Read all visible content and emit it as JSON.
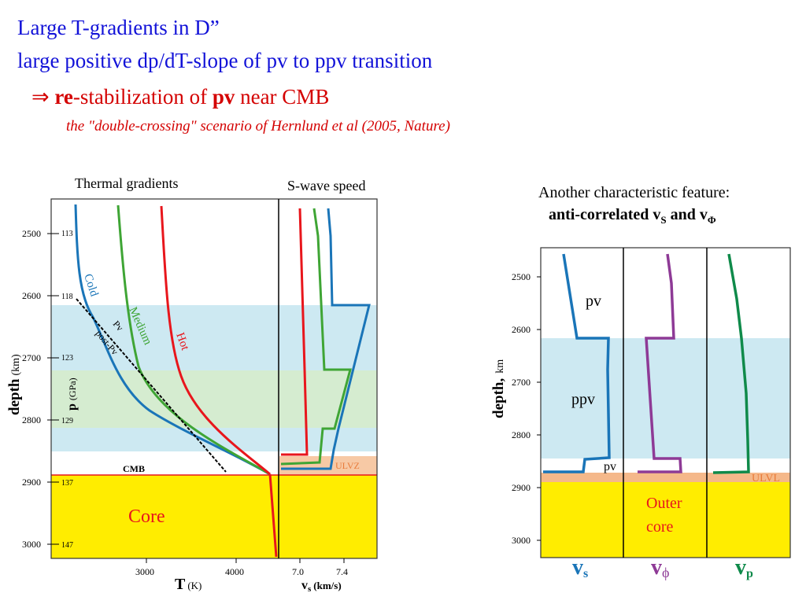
{
  "header": {
    "line1": "Large T-gradients in D”",
    "line2": "large positive dp/dT-slope of pv to ppv transition",
    "line3": {
      "arrow": "⇒",
      "re": "re",
      "mid": "-stabilization of ",
      "pv": "pv",
      "end": " near CMB"
    },
    "line4": "the \"double-crossing\" scenario of Hernlund et al (2005, Nature)"
  },
  "left_figure": {
    "caption_thermal": "Thermal gradients",
    "caption_swave": "S-wave speed",
    "depth_ticks": [
      "2500",
      "2600",
      "2700",
      "2800",
      "2900",
      "3000"
    ],
    "pressure_ticks": [
      "113",
      "118",
      "123",
      "129",
      "137",
      "147"
    ],
    "depth_label": "depth",
    "depth_unit": "(km)",
    "pressure_label": "p",
    "pressure_unit": "(GPa)",
    "t_ticks": [
      "3000",
      "4000"
    ],
    "t_label": "T",
    "t_unit": "(K)",
    "vs_ticks": [
      "7.0",
      "7.4"
    ],
    "vs_label": "v",
    "vs_sub": "s",
    "vs_unit": "(km/s)",
    "curve_labels": {
      "cold": "Cold",
      "medium": "Medium",
      "hot": "Hot",
      "pv": "Pv",
      "postpv": "post-Pv"
    },
    "cmb_label": "CMB",
    "ulvz_label": "ULVZ",
    "core_label": "Core",
    "colors": {
      "cold": "#1a75b8",
      "medium": "#3fa535",
      "hot": "#e8161c",
      "core": "#ffed00",
      "ulvz": "#f7c9a5",
      "blue_band": "#cde9f2",
      "green_band": "#d5ecd0"
    }
  },
  "right_figure": {
    "title_line1": "Another characteristic feature:",
    "title_line2": "anti-correlated v",
    "title_sub_s": "S",
    "title_and": " and v",
    "title_sub_phi": "Φ",
    "depth_ticks": [
      "2500",
      "2600",
      "2700",
      "2800",
      "2900",
      "3000"
    ],
    "depth_label": "depth,",
    "depth_unit": "km",
    "layer_labels": {
      "pv_top": "pv",
      "ppv": "ppv",
      "pv_bottom": "pv",
      "ulvl": "ULVL",
      "outer_core_1": "Outer",
      "outer_core_2": "core"
    },
    "panel_labels": [
      {
        "main": "v",
        "sub": "s",
        "color": "#1a75b8"
      },
      {
        "main": "v",
        "sub": "ϕ",
        "color": "#8e3a96"
      },
      {
        "main": "v",
        "sub": "p",
        "color": "#0f8a4a"
      }
    ],
    "colors": {
      "vs": "#1a75b8",
      "vphi": "#8e3a96",
      "vp": "#0f8a4a",
      "ppv_band": "#cde9f2",
      "ulvl": "#f5b88a",
      "core": "#ffed00"
    }
  }
}
